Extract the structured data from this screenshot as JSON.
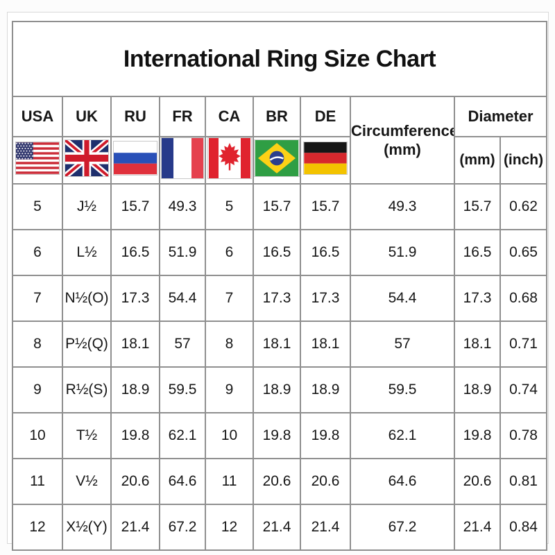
{
  "title": "International Ring Size Chart",
  "header": {
    "countries": [
      "USA",
      "UK",
      "RU",
      "FR",
      "CA",
      "BR",
      "DE"
    ],
    "flags": [
      "usa-flag",
      "uk-flag",
      "russia-flag",
      "france-flag",
      "canada-flag",
      "brazil-flag",
      "germany-flag"
    ],
    "circumference_label": "Circumference",
    "circumference_unit": "(mm)",
    "diameter_label": "Diameter",
    "diameter_units": [
      "(mm)",
      "(inch)"
    ]
  },
  "chart_data": {
    "type": "table",
    "title": "International Ring Size Chart",
    "columns": [
      "USA",
      "UK",
      "RU",
      "FR",
      "CA",
      "BR",
      "DE",
      "Circumference (mm)",
      "Diameter (mm)",
      "Diameter (inch)"
    ],
    "rows": [
      [
        "5",
        "J½",
        "15.7",
        "49.3",
        "5",
        "15.7",
        "15.7",
        "49.3",
        "15.7",
        "0.62"
      ],
      [
        "6",
        "L½",
        "16.5",
        "51.9",
        "6",
        "16.5",
        "16.5",
        "51.9",
        "16.5",
        "0.65"
      ],
      [
        "7",
        "N½(O)",
        "17.3",
        "54.4",
        "7",
        "17.3",
        "17.3",
        "54.4",
        "17.3",
        "0.68"
      ],
      [
        "8",
        "P½(Q)",
        "18.1",
        "57",
        "8",
        "18.1",
        "18.1",
        "57",
        "18.1",
        "0.71"
      ],
      [
        "9",
        "R½(S)",
        "18.9",
        "59.5",
        "9",
        "18.9",
        "18.9",
        "59.5",
        "18.9",
        "0.74"
      ],
      [
        "10",
        "T½",
        "19.8",
        "62.1",
        "10",
        "19.8",
        "19.8",
        "62.1",
        "19.8",
        "0.78"
      ],
      [
        "11",
        "V½",
        "20.6",
        "64.6",
        "11",
        "20.6",
        "20.6",
        "64.6",
        "20.6",
        "0.81"
      ],
      [
        "12",
        "X½(Y)",
        "21.4",
        "67.2",
        "12",
        "21.4",
        "21.4",
        "67.2",
        "21.4",
        "0.84"
      ]
    ],
    "border_color": "#8f8f8f"
  }
}
